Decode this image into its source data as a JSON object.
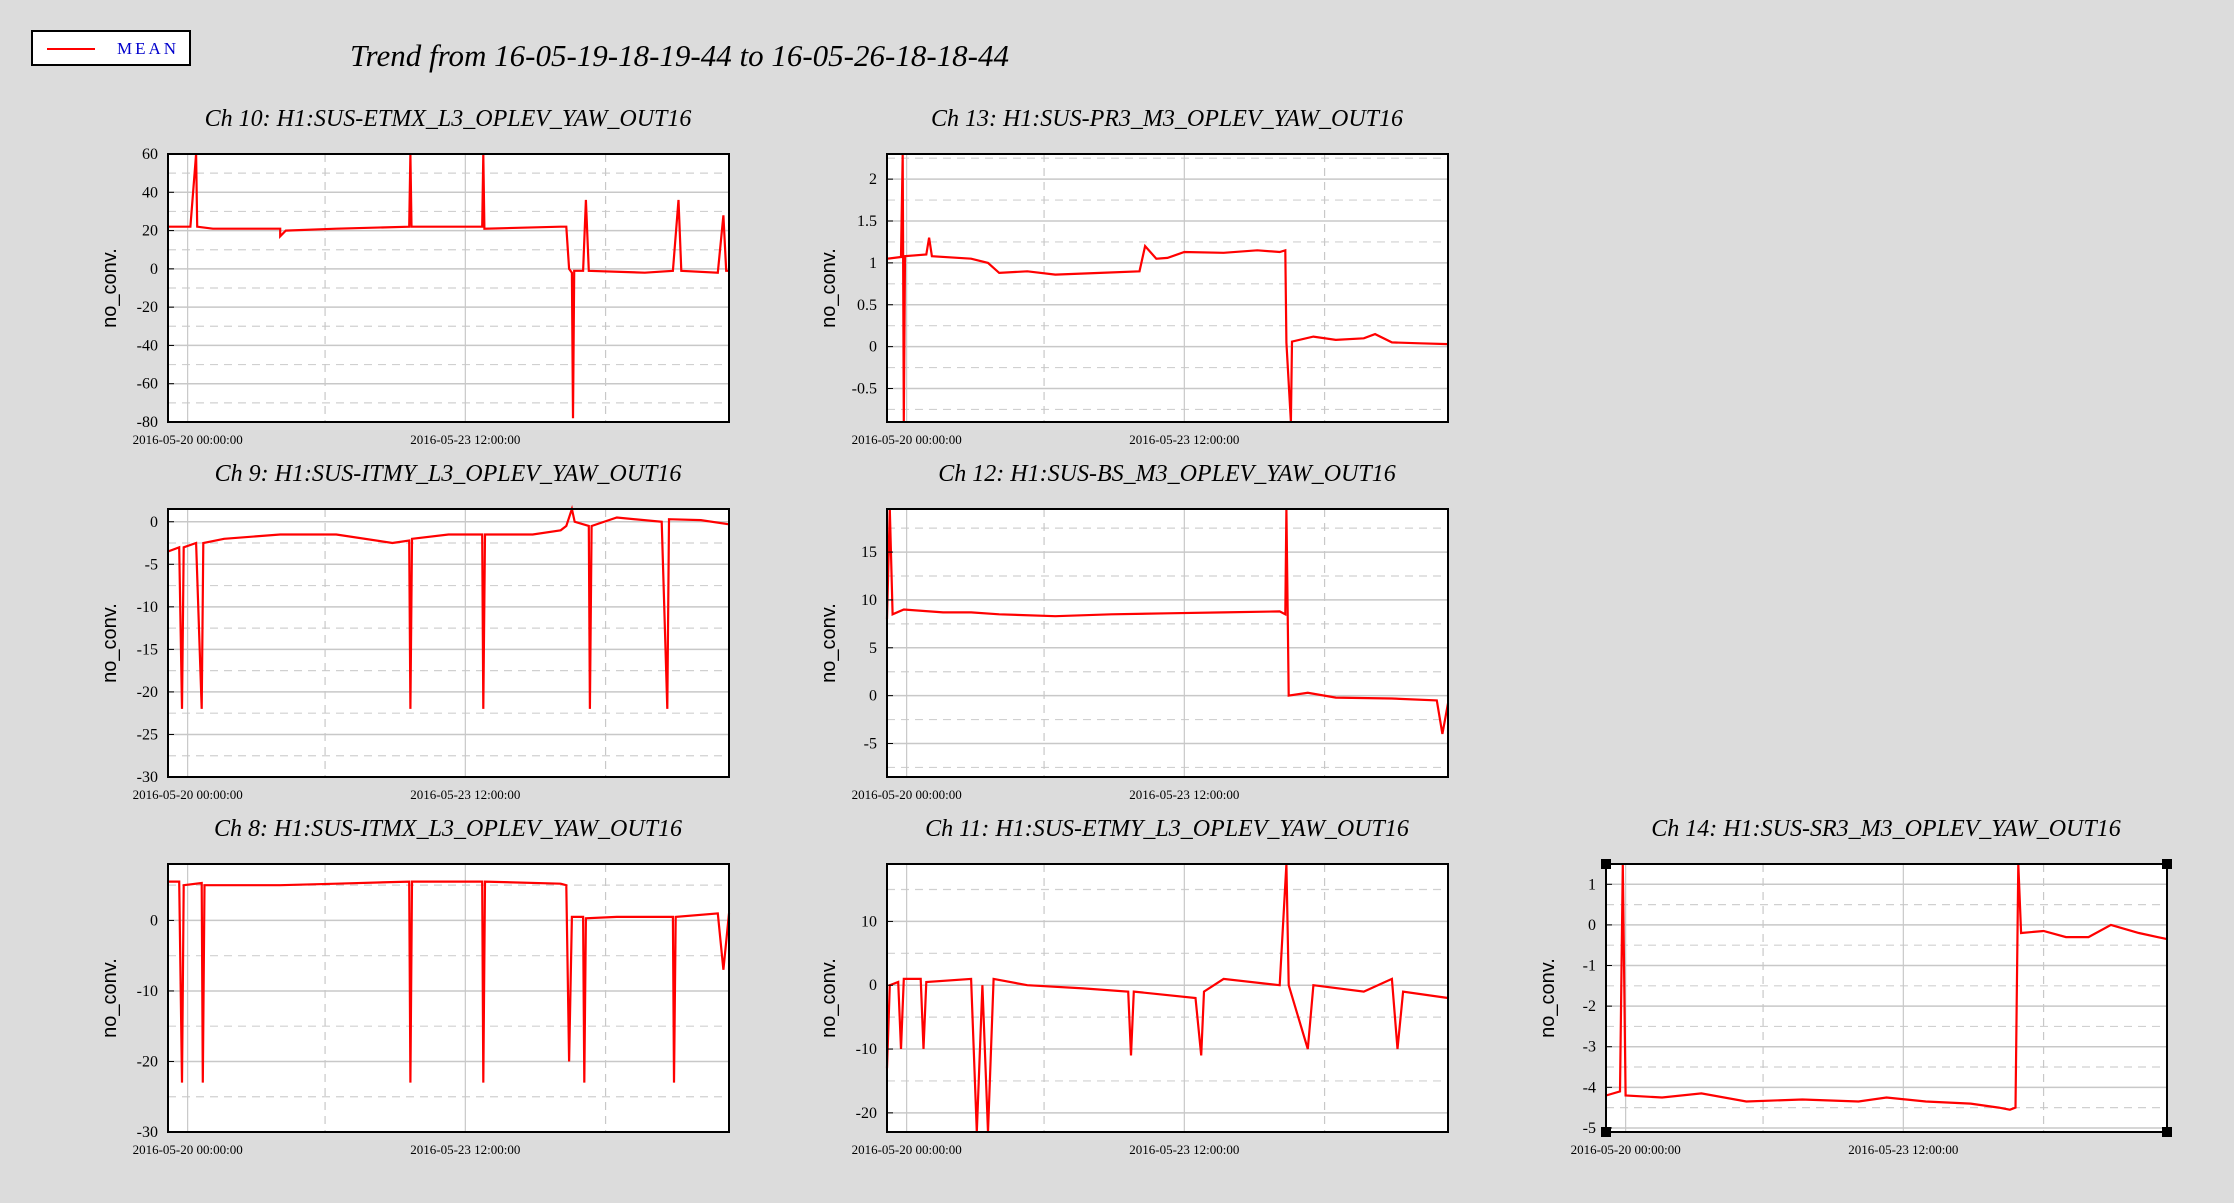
{
  "legend": {
    "label": "MEAN",
    "color": "#ff0000"
  },
  "title": "Trend from 16-05-19-18-19-44 to 16-05-26-18-18-44",
  "chart_data": [
    {
      "type": "line",
      "title": "Ch 10: H1:SUS-ETMX_L3_OPLEV_YAW_OUT16",
      "ylabel": "no_conv.",
      "xticks": [
        "2016-05-20 00:00:00",
        "2016-05-23 12:00:00"
      ],
      "yticks": [
        60,
        40,
        20,
        0,
        -20,
        -40,
        -60,
        -80
      ],
      "ylim": [
        -80,
        60
      ],
      "series": [
        {
          "values": [
            [
              0,
              22
            ],
            [
              0.04,
              22
            ],
            [
              0.05,
              60
            ],
            [
              0.052,
              22
            ],
            [
              0.08,
              21
            ],
            [
              0.1,
              21
            ],
            [
              0.2,
              21
            ],
            [
              0.2,
              17
            ],
            [
              0.21,
              20
            ],
            [
              0.3,
              21
            ],
            [
              0.43,
              22
            ],
            [
              0.432,
              60
            ],
            [
              0.434,
              22
            ],
            [
              0.55,
              22
            ],
            [
              0.56,
              22
            ],
            [
              0.562,
              60
            ],
            [
              0.564,
              21
            ],
            [
              0.7,
              22
            ],
            [
              0.71,
              22
            ],
            [
              0.715,
              0
            ],
            [
              0.72,
              -2
            ],
            [
              0.722,
              -78
            ],
            [
              0.724,
              -1
            ],
            [
              0.74,
              -1
            ],
            [
              0.745,
              36
            ],
            [
              0.75,
              -1
            ],
            [
              0.85,
              -2
            ],
            [
              0.9,
              -1
            ],
            [
              0.91,
              36
            ],
            [
              0.915,
              -1
            ],
            [
              0.98,
              -2
            ],
            [
              0.99,
              28
            ],
            [
              0.995,
              -1
            ],
            [
              1,
              -1
            ]
          ]
        }
      ]
    },
    {
      "type": "line",
      "title": "Ch 13: H1:SUS-PR3_M3_OPLEV_YAW_OUT16",
      "ylabel": "no_conv.",
      "xticks": [
        "2016-05-20 00:00:00",
        "2016-05-23 12:00:00"
      ],
      "yticks": [
        2,
        1.5,
        1,
        0.5,
        0,
        -0.5
      ],
      "ylim": [
        -0.9,
        2.3
      ],
      "series": [
        {
          "values": [
            [
              0,
              1.05
            ],
            [
              0.025,
              1.07
            ],
            [
              0.028,
              2.3
            ],
            [
              0.03,
              -0.9
            ],
            [
              0.032,
              1.08
            ],
            [
              0.07,
              1.1
            ],
            [
              0.075,
              1.3
            ],
            [
              0.08,
              1.08
            ],
            [
              0.15,
              1.05
            ],
            [
              0.18,
              1.0
            ],
            [
              0.2,
              0.88
            ],
            [
              0.25,
              0.9
            ],
            [
              0.3,
              0.86
            ],
            [
              0.38,
              0.88
            ],
            [
              0.45,
              0.9
            ],
            [
              0.46,
              1.2
            ],
            [
              0.48,
              1.05
            ],
            [
              0.5,
              1.06
            ],
            [
              0.53,
              1.13
            ],
            [
              0.6,
              1.12
            ],
            [
              0.66,
              1.15
            ],
            [
              0.7,
              1.13
            ],
            [
              0.71,
              1.15
            ],
            [
              0.712,
              0.05
            ],
            [
              0.72,
              -0.9
            ],
            [
              0.722,
              0.06
            ],
            [
              0.76,
              0.12
            ],
            [
              0.8,
              0.08
            ],
            [
              0.85,
              0.1
            ],
            [
              0.87,
              0.15
            ],
            [
              0.9,
              0.05
            ],
            [
              0.95,
              0.04
            ],
            [
              1,
              0.03
            ]
          ]
        }
      ]
    },
    {
      "type": "line",
      "title": "Ch 9: H1:SUS-ITMY_L3_OPLEV_YAW_OUT16",
      "ylabel": "no_conv.",
      "xticks": [
        "2016-05-20 00:00:00",
        "2016-05-23 12:00:00"
      ],
      "yticks": [
        0,
        -5,
        -10,
        -15,
        -20,
        -25,
        -30
      ],
      "ylim": [
        -30,
        1.5
      ],
      "series": [
        {
          "values": [
            [
              0,
              -3.5
            ],
            [
              0.02,
              -3
            ],
            [
              0.025,
              -22
            ],
            [
              0.028,
              -3
            ],
            [
              0.05,
              -2.5
            ],
            [
              0.06,
              -22
            ],
            [
              0.063,
              -2.5
            ],
            [
              0.1,
              -2
            ],
            [
              0.2,
              -1.5
            ],
            [
              0.3,
              -1.5
            ],
            [
              0.4,
              -2.5
            ],
            [
              0.43,
              -2.2
            ],
            [
              0.432,
              -22
            ],
            [
              0.435,
              -2
            ],
            [
              0.5,
              -1.5
            ],
            [
              0.56,
              -1.5
            ],
            [
              0.562,
              -22
            ],
            [
              0.565,
              -1.5
            ],
            [
              0.65,
              -1.5
            ],
            [
              0.7,
              -1
            ],
            [
              0.71,
              -0.5
            ],
            [
              0.72,
              1.5
            ],
            [
              0.725,
              0
            ],
            [
              0.75,
              -0.5
            ],
            [
              0.752,
              -22
            ],
            [
              0.755,
              -0.5
            ],
            [
              0.8,
              0.5
            ],
            [
              0.88,
              0
            ],
            [
              0.89,
              -22
            ],
            [
              0.893,
              0.3
            ],
            [
              0.95,
              0.2
            ],
            [
              1,
              -0.3
            ]
          ]
        }
      ]
    },
    {
      "type": "line",
      "title": "Ch 12: H1:SUS-BS_M3_OPLEV_YAW_OUT16",
      "ylabel": "no_conv.",
      "xticks": [
        "2016-05-20 00:00:00",
        "2016-05-23 12:00:00"
      ],
      "yticks": [
        15,
        10,
        5,
        0,
        -5
      ],
      "ylim": [
        -8.5,
        19.5
      ],
      "series": [
        {
          "values": [
            [
              0,
              8
            ],
            [
              0.005,
              19.5
            ],
            [
              0.01,
              8.5
            ],
            [
              0.03,
              9
            ],
            [
              0.1,
              8.7
            ],
            [
              0.15,
              8.7
            ],
            [
              0.2,
              8.5
            ],
            [
              0.3,
              8.3
            ],
            [
              0.4,
              8.5
            ],
            [
              0.5,
              8.6
            ],
            [
              0.6,
              8.7
            ],
            [
              0.7,
              8.8
            ],
            [
              0.71,
              8.5
            ],
            [
              0.712,
              19.5
            ],
            [
              0.716,
              0
            ],
            [
              0.75,
              0.3
            ],
            [
              0.8,
              -0.2
            ],
            [
              0.9,
              -0.3
            ],
            [
              0.98,
              -0.5
            ],
            [
              0.99,
              -4
            ],
            [
              1,
              -0.8
            ]
          ]
        }
      ]
    },
    {
      "type": "line",
      "title": "Ch 8: H1:SUS-ITMX_L3_OPLEV_YAW_OUT16",
      "ylabel": "no_conv.",
      "xticks": [
        "2016-05-20 00:00:00",
        "2016-05-23 12:00:00"
      ],
      "yticks": [
        0,
        -10,
        -20,
        -30
      ],
      "ylim": [
        -30,
        8
      ],
      "series": [
        {
          "values": [
            [
              0,
              5.5
            ],
            [
              0.02,
              5.5
            ],
            [
              0.025,
              -23
            ],
            [
              0.028,
              5
            ],
            [
              0.06,
              5.3
            ],
            [
              0.062,
              -23
            ],
            [
              0.065,
              5
            ],
            [
              0.15,
              5
            ],
            [
              0.2,
              5
            ],
            [
              0.3,
              5.2
            ],
            [
              0.43,
              5.5
            ],
            [
              0.432,
              -23
            ],
            [
              0.435,
              5.5
            ],
            [
              0.56,
              5.5
            ],
            [
              0.562,
              -23
            ],
            [
              0.565,
              5.5
            ],
            [
              0.7,
              5.2
            ],
            [
              0.71,
              5
            ],
            [
              0.715,
              -20
            ],
            [
              0.72,
              0.5
            ],
            [
              0.74,
              0.5
            ],
            [
              0.742,
              -23
            ],
            [
              0.745,
              0.3
            ],
            [
              0.8,
              0.5
            ],
            [
              0.9,
              0.5
            ],
            [
              0.902,
              -23
            ],
            [
              0.905,
              0.5
            ],
            [
              0.98,
              1
            ],
            [
              0.99,
              -7
            ],
            [
              1,
              1
            ]
          ]
        }
      ]
    },
    {
      "type": "line",
      "title": "Ch 11: H1:SUS-ETMY_L3_OPLEV_YAW_OUT16",
      "ylabel": "no_conv.",
      "xticks": [
        "2016-05-20 00:00:00",
        "2016-05-23 12:00:00"
      ],
      "yticks": [
        10,
        0,
        -10,
        -20
      ],
      "ylim": [
        -23,
        19
      ],
      "series": [
        {
          "values": [
            [
              0,
              -13
            ],
            [
              0.005,
              0
            ],
            [
              0.02,
              0.5
            ],
            [
              0.025,
              -10
            ],
            [
              0.03,
              1
            ],
            [
              0.06,
              1
            ],
            [
              0.065,
              -10
            ],
            [
              0.07,
              0.5
            ],
            [
              0.15,
              1
            ],
            [
              0.16,
              -23
            ],
            [
              0.17,
              0
            ],
            [
              0.18,
              -23
            ],
            [
              0.19,
              1
            ],
            [
              0.25,
              0
            ],
            [
              0.35,
              -0.5
            ],
            [
              0.43,
              -1
            ],
            [
              0.435,
              -11
            ],
            [
              0.44,
              -1
            ],
            [
              0.55,
              -2
            ],
            [
              0.56,
              -11
            ],
            [
              0.565,
              -1
            ],
            [
              0.6,
              1
            ],
            [
              0.7,
              0
            ],
            [
              0.712,
              19
            ],
            [
              0.716,
              0
            ],
            [
              0.75,
              -10
            ],
            [
              0.76,
              0
            ],
            [
              0.85,
              -1
            ],
            [
              0.9,
              1
            ],
            [
              0.91,
              -10
            ],
            [
              0.92,
              -1
            ],
            [
              1,
              -2
            ]
          ]
        }
      ]
    },
    {
      "type": "line",
      "title": "Ch 14: H1:SUS-SR3_M3_OPLEV_YAW_OUT16",
      "ylabel": "no_conv.",
      "xticks": [
        "2016-05-20 00:00:00",
        "2016-05-23 12:00:00"
      ],
      "yticks": [
        1,
        0,
        -1,
        -2,
        -3,
        -4,
        -5
      ],
      "ylim": [
        -5.1,
        1.5
      ],
      "series": [
        {
          "values": [
            [
              0,
              -4.2
            ],
            [
              0.025,
              -4.1
            ],
            [
              0.03,
              1.5
            ],
            [
              0.035,
              -4.2
            ],
            [
              0.1,
              -4.25
            ],
            [
              0.17,
              -4.15
            ],
            [
              0.25,
              -4.35
            ],
            [
              0.35,
              -4.3
            ],
            [
              0.45,
              -4.35
            ],
            [
              0.5,
              -4.25
            ],
            [
              0.57,
              -4.35
            ],
            [
              0.65,
              -4.4
            ],
            [
              0.7,
              -4.5
            ],
            [
              0.72,
              -4.55
            ],
            [
              0.73,
              -4.5
            ],
            [
              0.735,
              1.5
            ],
            [
              0.74,
              -0.2
            ],
            [
              0.78,
              -0.15
            ],
            [
              0.82,
              -0.3
            ],
            [
              0.86,
              -0.3
            ],
            [
              0.9,
              0
            ],
            [
              0.95,
              -0.2
            ],
            [
              1,
              -0.35
            ]
          ]
        }
      ]
    }
  ]
}
